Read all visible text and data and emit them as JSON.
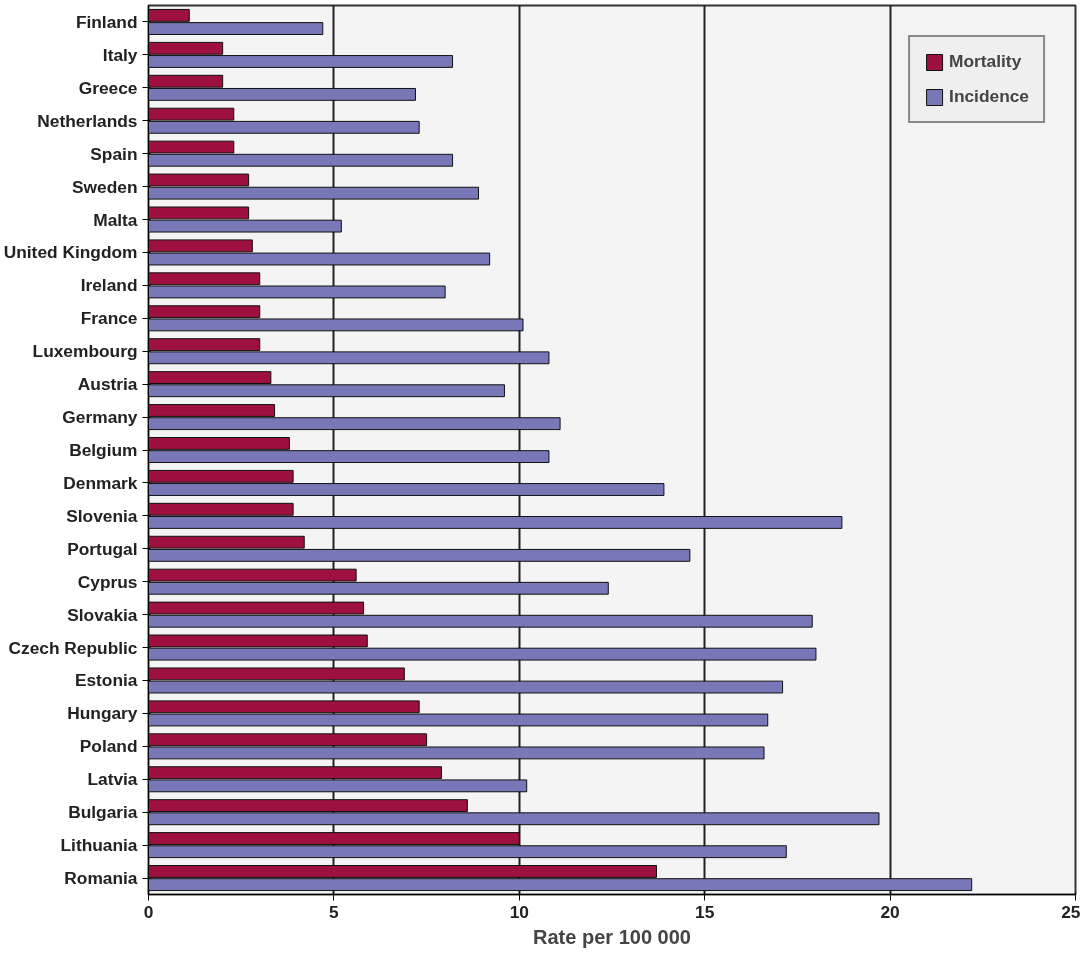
{
  "chart_data": {
    "type": "bar",
    "orientation": "horizontal",
    "xlabel": "Rate per 100 000",
    "categories": [
      "Finland",
      "Italy",
      "Greece",
      "Netherlands",
      "Spain",
      "Sweden",
      "Malta",
      "United Kingdom",
      "Ireland",
      "France",
      "Luxembourg",
      "Austria",
      "Germany",
      "Belgium",
      "Denmark",
      "Slovenia",
      "Portugal",
      "Cyprus",
      "Slovakia",
      "Czech Republic",
      "Estonia",
      "Hungary",
      "Poland",
      "Latvia",
      "Bulgaria",
      "Lithuania",
      "Romania"
    ],
    "series": [
      {
        "name": "Mortality",
        "color": "#9e1040",
        "values": [
          1.1,
          2.0,
          2.0,
          2.3,
          2.3,
          2.7,
          2.7,
          2.8,
          3.0,
          3.0,
          3.0,
          3.3,
          3.4,
          3.8,
          3.9,
          3.9,
          4.2,
          5.6,
          5.8,
          5.9,
          6.9,
          7.3,
          7.5,
          7.9,
          8.6,
          10.0,
          13.7
        ]
      },
      {
        "name": "Incidence",
        "color": "#7878b8",
        "values": [
          4.7,
          8.2,
          7.2,
          7.3,
          8.2,
          8.9,
          5.2,
          9.2,
          8.0,
          10.1,
          10.8,
          9.6,
          11.1,
          10.8,
          13.9,
          18.7,
          14.6,
          12.4,
          17.9,
          18.0,
          17.1,
          16.7,
          16.6,
          10.2,
          19.7,
          17.2,
          22.2
        ]
      }
    ],
    "xlim": [
      0,
      25
    ],
    "xticks": [
      0,
      5,
      10,
      15,
      20,
      25
    ],
    "grid": "x",
    "legend": "top right"
  }
}
